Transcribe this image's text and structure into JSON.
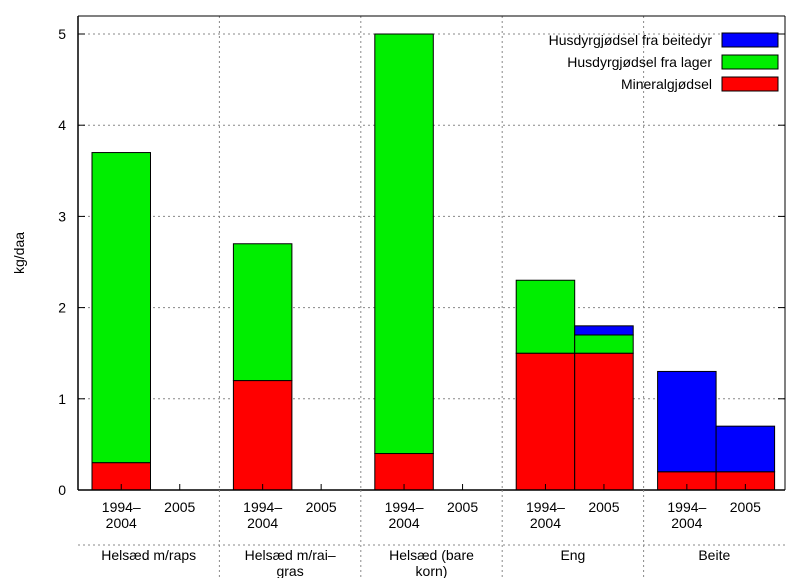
{
  "chart_data": {
    "type": "bar",
    "stacked": true,
    "title": "",
    "xlabel": "",
    "ylabel": "kg/daa",
    "ylim": [
      0,
      5
    ],
    "yticks": [
      0,
      1,
      2,
      3,
      4,
      5
    ],
    "grid": true,
    "legend_position": "top-right",
    "groups": [
      {
        "label": "Helsæd m/raps",
        "bars": [
          {
            "label": "1994–\n2004",
            "values": [
              0.3,
              3.4,
              0
            ]
          },
          {
            "label": "2005",
            "values": [
              0,
              0,
              0
            ]
          }
        ]
      },
      {
        "label": "Helsæd m/rai–\ngras",
        "bars": [
          {
            "label": "1994–\n2004",
            "values": [
              1.2,
              1.5,
              0
            ]
          },
          {
            "label": "2005",
            "values": [
              0,
              0,
              0
            ]
          }
        ]
      },
      {
        "label": "Helsæd (bare\nkorn)",
        "bars": [
          {
            "label": "1994–\n2004",
            "values": [
              0.4,
              4.6,
              0
            ]
          },
          {
            "label": "2005",
            "values": [
              0,
              0,
              0
            ]
          }
        ]
      },
      {
        "label": "Eng",
        "bars": [
          {
            "label": "1994–\n2004",
            "values": [
              1.5,
              0.8,
              0
            ]
          },
          {
            "label": "2005",
            "values": [
              1.5,
              0.2,
              0.1
            ]
          }
        ]
      },
      {
        "label": "Beite",
        "bars": [
          {
            "label": "1994–\n2004",
            "values": [
              0.2,
              0,
              1.1
            ]
          },
          {
            "label": "2005",
            "values": [
              0.2,
              0,
              0.5
            ]
          }
        ]
      }
    ],
    "series": [
      {
        "name": "Mineralgjødsel",
        "color": "#ff0000"
      },
      {
        "name": "Husdyrgjødsel fra lager",
        "color": "#00ee00"
      },
      {
        "name": "Husdyrgjødsel fra beitedyr",
        "color": "#0000ff"
      }
    ],
    "legend_order": [
      2,
      1,
      0
    ]
  }
}
